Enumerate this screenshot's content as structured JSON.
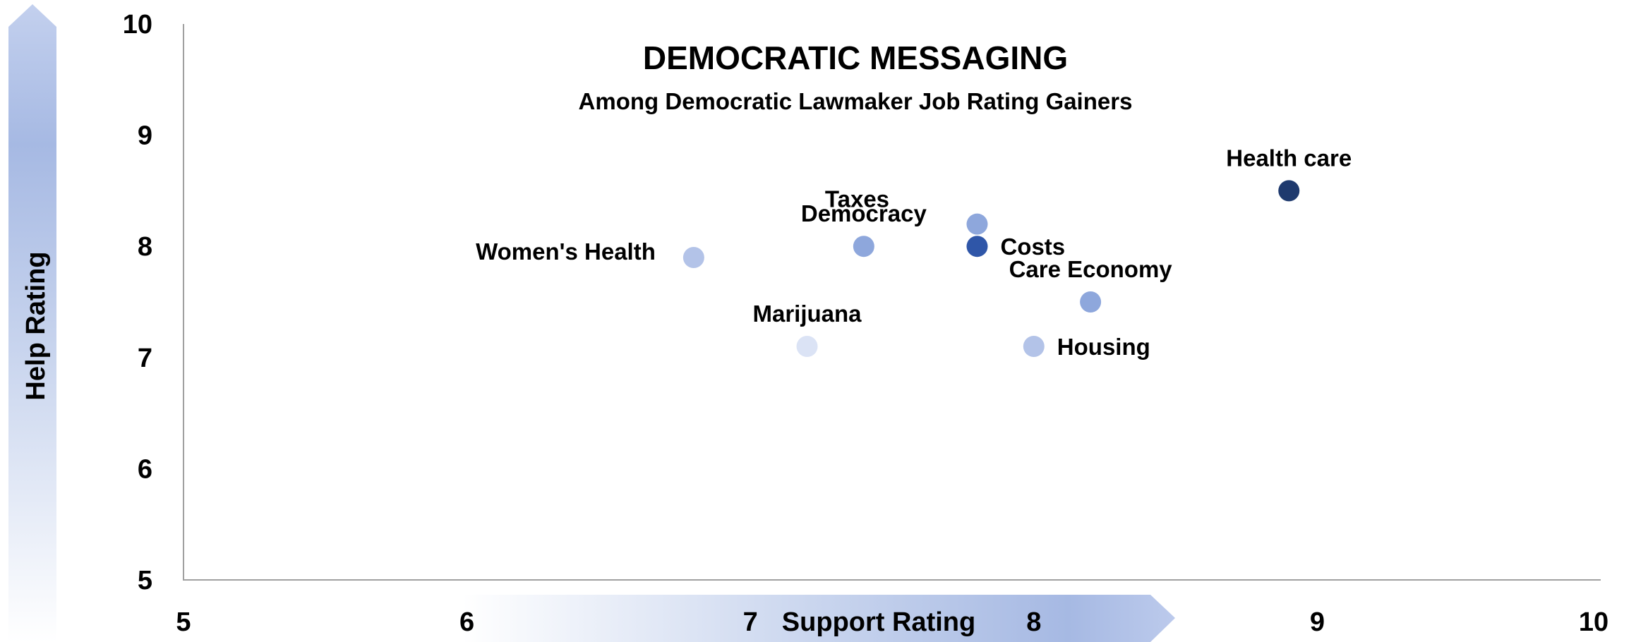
{
  "chart_data": {
    "type": "scatter",
    "title": "DEMOCRATIC MESSAGING",
    "subtitle": "Among Democratic Lawmaker Job Rating Gainers",
    "xlabel": "Support Rating",
    "ylabel": "Help Rating",
    "xlim": [
      5,
      10
    ],
    "ylim": [
      5,
      10
    ],
    "xticks": [
      "5",
      "6",
      "7",
      "8",
      "9",
      "10"
    ],
    "yticks": [
      "5",
      "6",
      "7",
      "8",
      "9",
      "10"
    ],
    "grid": false,
    "points": [
      {
        "label": "Health care",
        "x": 8.9,
        "y": 8.5,
        "color": "#1f3a6e",
        "label_pos": "above"
      },
      {
        "label": "Taxes",
        "x": 7.8,
        "y": 8.2,
        "color": "#8ea7dc",
        "label_pos": "above-left"
      },
      {
        "label": "Democracy",
        "x": 7.4,
        "y": 8.0,
        "color": "#8ea7dc",
        "label_pos": "above"
      },
      {
        "label": "Costs",
        "x": 7.8,
        "y": 8.0,
        "color": "#2f56a8",
        "label_pos": "right"
      },
      {
        "label": "Women's Health",
        "x": 6.8,
        "y": 7.9,
        "color": "#b3c3e8",
        "label_pos": "left"
      },
      {
        "label": "Care Economy",
        "x": 8.2,
        "y": 7.5,
        "color": "#8ea7dc",
        "label_pos": "above"
      },
      {
        "label": "Marijuana",
        "x": 7.2,
        "y": 7.1,
        "color": "#dbe3f5",
        "label_pos": "above"
      },
      {
        "label": "Housing",
        "x": 8.0,
        "y": 7.1,
        "color": "#b3c3e8",
        "label_pos": "right"
      }
    ]
  }
}
